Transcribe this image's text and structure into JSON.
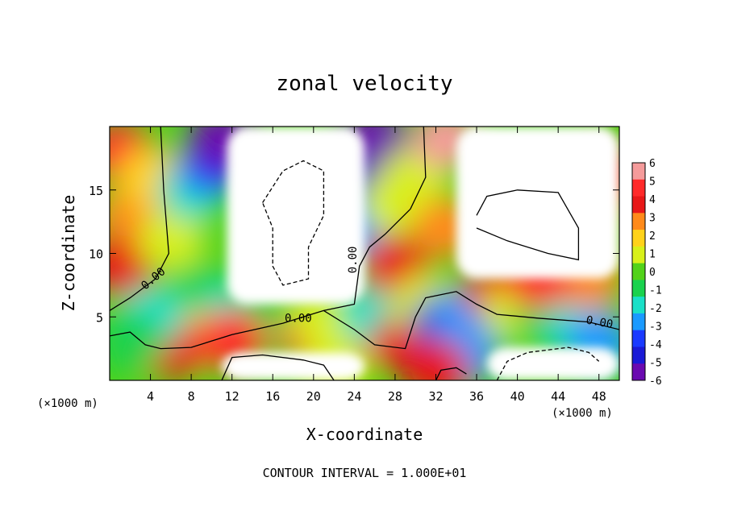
{
  "chart_data": {
    "type": "heatmap",
    "title": "zonal velocity",
    "xlabel": "X-coordinate",
    "ylabel": "Z-coordinate",
    "x_unit": "(×1000 m)",
    "footer": "CONTOUR INTERVAL = 1.000E+01",
    "xlim": [
      0,
      50
    ],
    "ylim": [
      0,
      20
    ],
    "x_ticks": [
      4,
      8,
      12,
      16,
      20,
      24,
      28,
      32,
      36,
      40,
      44,
      48
    ],
    "y_ticks": [
      5,
      10,
      15
    ],
    "colorbar": {
      "levels": [
        6,
        5,
        4,
        3,
        2,
        1,
        0,
        -1,
        -2,
        -3,
        -4,
        -5,
        -6
      ],
      "colors": [
        "#f59b9b",
        "#ff2a2a",
        "#e81818",
        "#ff8a1a",
        "#ffd21a",
        "#d8f01a",
        "#52d21a",
        "#1ad24e",
        "#1ae0c8",
        "#1a9aff",
        "#1a3aff",
        "#1a1ad6",
        "#6a0ab0"
      ]
    },
    "contour_labels": [
      "0.00",
      "0.00",
      "0.00",
      "0.00"
    ],
    "fields": [
      {
        "x": 2,
        "y": 13,
        "v": 2.5
      },
      {
        "x": 1,
        "y": 18,
        "v": 4.5
      },
      {
        "x": 1,
        "y": 9,
        "v": 4
      },
      {
        "x": 4,
        "y": 16,
        "v": 1.5
      },
      {
        "x": 6,
        "y": 11,
        "v": 1
      },
      {
        "x": 8,
        "y": 15,
        "v": -2
      },
      {
        "x": 10,
        "y": 17,
        "v": -4.5
      },
      {
        "x": 11,
        "y": 19,
        "v": -6
      },
      {
        "x": 9,
        "y": 7,
        "v": -1.5
      },
      {
        "x": 12,
        "y": 5,
        "v": -2.5
      },
      {
        "x": 16,
        "y": 4.5,
        "v": -1.5
      },
      {
        "x": 8,
        "y": 3,
        "v": 2
      },
      {
        "x": 6,
        "y": 2.5,
        "v": 4
      },
      {
        "x": 12,
        "y": 3.2,
        "v": 5
      },
      {
        "x": 20,
        "y": 3.6,
        "v": 5
      },
      {
        "x": 23,
        "y": 2.5,
        "v": 4.5
      },
      {
        "x": 21,
        "y": 5,
        "v": 0.5
      },
      {
        "x": 22,
        "y": 1,
        "v": 1
      },
      {
        "x": 24,
        "y": 12,
        "v": -3
      },
      {
        "x": 25,
        "y": 17,
        "v": -5
      },
      {
        "x": 26,
        "y": 19,
        "v": -6
      },
      {
        "x": 24.5,
        "y": 8,
        "v": -1
      },
      {
        "x": 26,
        "y": 5,
        "v": -2
      },
      {
        "x": 28,
        "y": 9,
        "v": 4
      },
      {
        "x": 28,
        "y": 14,
        "v": 0.5
      },
      {
        "x": 30,
        "y": 16,
        "v": 1
      },
      {
        "x": 33,
        "y": 19,
        "v": 5.5
      },
      {
        "x": 33,
        "y": 12,
        "v": 3
      },
      {
        "x": 29,
        "y": 3,
        "v": 4
      },
      {
        "x": 31,
        "y": 6,
        "v": 1
      },
      {
        "x": 33,
        "y": 4.5,
        "v": -5
      },
      {
        "x": 35,
        "y": 5,
        "v": -3.5
      },
      {
        "x": 35,
        "y": 2,
        "v": -3
      },
      {
        "x": 32,
        "y": 0.8,
        "v": 4
      },
      {
        "x": 38,
        "y": 7,
        "v": 3.5
      },
      {
        "x": 40,
        "y": 5.5,
        "v": 1
      },
      {
        "x": 43,
        "y": 5,
        "v": -1
      },
      {
        "x": 46,
        "y": 4.2,
        "v": -2
      },
      {
        "x": 48,
        "y": 3,
        "v": -3
      },
      {
        "x": 47,
        "y": 8,
        "v": 3
      },
      {
        "x": 48.5,
        "y": 16,
        "v": 4.5
      },
      {
        "x": 46,
        "y": 13,
        "v": 3
      },
      {
        "x": 42,
        "y": 8,
        "v": 4.5
      },
      {
        "x": 4,
        "y": 5,
        "v": -2
      },
      {
        "x": 2,
        "y": 3,
        "v": -1
      }
    ],
    "white_regions": [
      {
        "name": "upper-left",
        "x0": 11.5,
        "x1": 25,
        "y0": 6,
        "y1": 20
      },
      {
        "name": "upper-right",
        "x0": 34,
        "x1": 50,
        "y0": 8,
        "y1": 20
      },
      {
        "name": "lower-middle",
        "x0": 11,
        "x1": 25,
        "y0": 0,
        "y1": 2.2
      },
      {
        "name": "lower-right",
        "x0": 37,
        "x1": 50,
        "y0": 0,
        "y1": 2.6
      }
    ]
  }
}
